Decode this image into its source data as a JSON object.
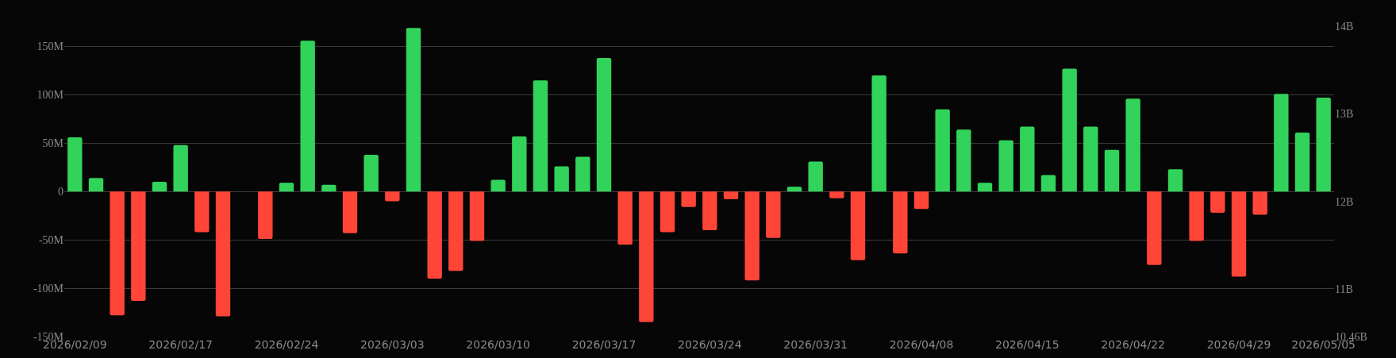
{
  "chart_data": {
    "type": "bar",
    "categories": [
      "2026/02/09",
      null,
      null,
      null,
      null,
      "2026/02/17",
      null,
      null,
      null,
      null,
      "2026/02/24",
      null,
      null,
      null,
      null,
      "2026/03/03",
      null,
      null,
      null,
      null,
      "2026/03/10",
      null,
      null,
      null,
      null,
      "2026/03/17",
      null,
      null,
      null,
      null,
      "2026/03/24",
      null,
      null,
      null,
      null,
      "2026/03/31",
      null,
      null,
      null,
      null,
      "2026/04/08",
      null,
      null,
      null,
      null,
      "2026/04/15",
      null,
      null,
      null,
      null,
      "2026/04/22",
      null,
      null,
      null,
      null,
      "2026/04/29",
      null,
      null,
      null,
      "2026/05/05"
    ],
    "values": [
      56,
      14,
      -128,
      -113,
      10,
      48,
      -42,
      -129,
      0,
      -49,
      9,
      156,
      7,
      -43,
      38,
      -10,
      169,
      -90,
      -82,
      -51,
      12,
      57,
      115,
      26,
      36,
      138,
      -55,
      -135,
      -42,
      -16,
      -40,
      -8,
      -92,
      -48,
      5,
      31,
      -7,
      -71,
      120,
      -64,
      -18,
      85,
      64,
      9,
      53,
      67,
      17,
      127,
      67,
      43,
      96,
      -76,
      23,
      -51,
      -22,
      -88,
      -24,
      101,
      61,
      97
    ],
    "colors": [
      "#32d35a",
      "#32d35a",
      "#ff4538",
      "#ff4538",
      "#32d35a",
      "#32d35a",
      "#ff4538",
      "#ff4538",
      "#32d35a",
      "#ff4538",
      "#32d35a",
      "#32d35a",
      "#32d35a",
      "#ff4538",
      "#32d35a",
      "#ff4538",
      "#32d35a",
      "#ff4538",
      "#ff4538",
      "#ff4538",
      "#32d35a",
      "#32d35a",
      "#32d35a",
      "#32d35a",
      "#32d35a",
      "#32d35a",
      "#ff4538",
      "#ff4538",
      "#ff4538",
      "#ff4538",
      "#ff4538",
      "#ff4538",
      "#ff4538",
      "#ff4538",
      "#32d35a",
      "#32d35a",
      "#ff4538",
      "#ff4538",
      "#32d35a",
      "#ff4538",
      "#ff4538",
      "#32d35a",
      "#32d35a",
      "#32d35a",
      "#32d35a",
      "#32d35a",
      "#32d35a",
      "#32d35a",
      "#32d35a",
      "#32d35a",
      "#32d35a",
      "#ff4538",
      "#32d35a",
      "#ff4538",
      "#ff4538",
      "#ff4538",
      "#ff4538",
      "#32d35a",
      "#32d35a",
      "#32d35a"
    ],
    "ylim": [
      -150,
      198
    ],
    "yticks": [
      {
        "value": -150,
        "label": "-150M"
      },
      {
        "value": -100,
        "label": "-100M"
      },
      {
        "value": -50,
        "label": "-50M"
      },
      {
        "value": 0,
        "label": "0"
      },
      {
        "value": 50,
        "label": "50M"
      },
      {
        "value": 100,
        "label": "100M"
      },
      {
        "value": 150,
        "label": "150M"
      }
    ],
    "y2lim": [
      10.46,
      14.3
    ],
    "y2ticks": [
      {
        "value": 10.46,
        "label": "10.46B"
      },
      {
        "value": 11,
        "label": "11B"
      },
      {
        "value": 12,
        "label": "12B"
      },
      {
        "value": 13,
        "label": "13B"
      },
      {
        "value": 14,
        "label": "14B"
      }
    ],
    "grid": "y"
  }
}
